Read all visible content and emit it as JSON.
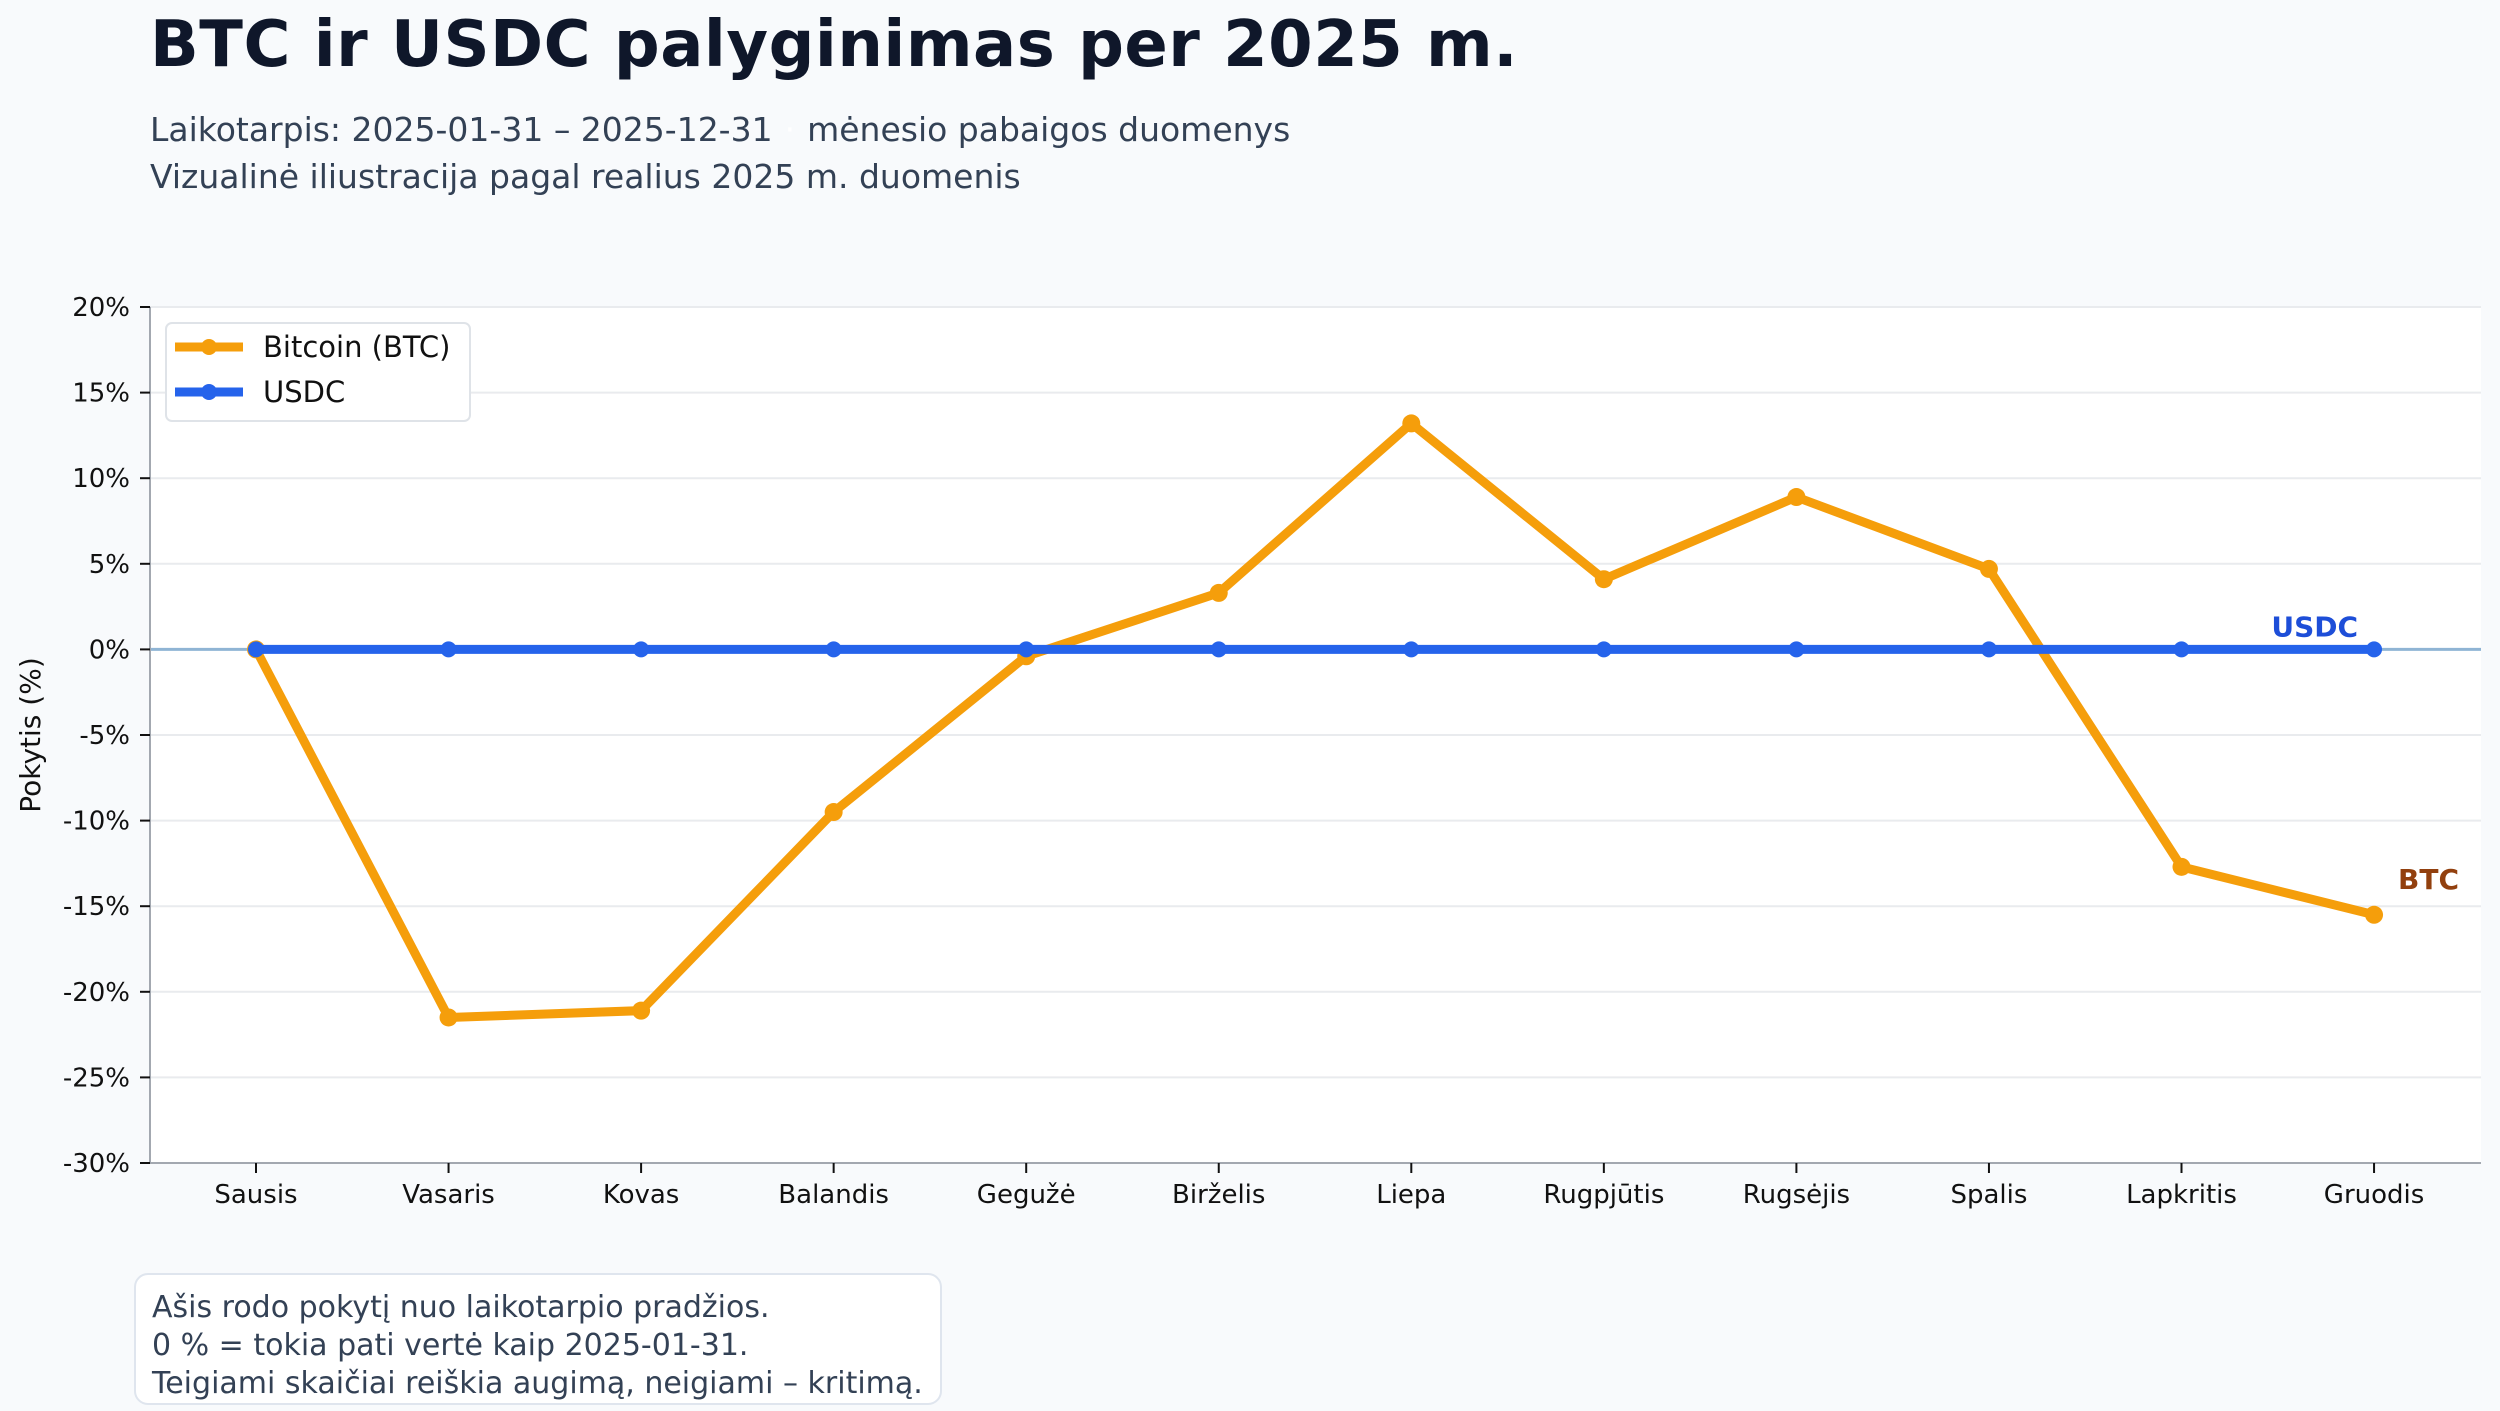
{
  "header": {
    "title": "BTC ir USDC palyginimas per 2025 m.",
    "subtitle_period": "Laikotarpis: 2025-01-31 – 2025-12-31",
    "subtitle_separator": "·",
    "subtitle_frequency": "mėnesio pabaigos duomenys",
    "subtitle_line2": "Vizualinė iliustracija pagal realius 2025 m. duomenis"
  },
  "note": {
    "lines": [
      "Ašis rodo pokytį nuo laikotarpio pradžios.",
      "0 % = tokia pati vertė kaip 2025-01-31.",
      "Teigiami skaičiai reiškia augimą, neigiami – kritimą."
    ]
  },
  "colors": {
    "btc": "#f59e0b",
    "usdc": "#2563eb",
    "btc_label": "#92400e",
    "usdc_label": "#1d4ed8",
    "zero_line": "#8fb4d4",
    "grid": "#e9ebee",
    "spine": "#a3a8b0",
    "background": "#f8fafc",
    "plot_background": "#ffffff"
  },
  "chart_data": {
    "type": "line",
    "title": "BTC ir USDC palyginimas per 2025 m.",
    "subtitle": "Laikotarpis: 2025-01-31 – 2025-12-31 · mėnesio pabaigos duomenys",
    "xlabel": "",
    "ylabel": "Pokytis (%)",
    "ylim": [
      -30,
      20
    ],
    "yticks": [
      20,
      15,
      10,
      5,
      0,
      -5,
      -10,
      -15,
      -20,
      -25,
      -30
    ],
    "ytick_labels": [
      "20%",
      "15%",
      "10%",
      "5%",
      "0%",
      "-5%",
      "-10%",
      "-15%",
      "-20%",
      "-25%",
      "-30%"
    ],
    "categories": [
      "Sausis",
      "Vasaris",
      "Kovas",
      "Balandis",
      "Gegužė",
      "Birželis",
      "Liepa",
      "Rugpjūtis",
      "Rugsėjis",
      "Spalis",
      "Lapkritis",
      "Gruodis"
    ],
    "series": [
      {
        "name": "Bitcoin (BTC)",
        "end_label": "BTC",
        "color": "#f59e0b",
        "values": [
          0,
          -21.5,
          -21.1,
          -9.5,
          -0.4,
          3.3,
          13.2,
          4.1,
          8.9,
          4.7,
          -12.7,
          -15.5
        ]
      },
      {
        "name": "USDC",
        "end_label": "USDC",
        "color": "#2563eb",
        "values": [
          0,
          0,
          0,
          0,
          0,
          0,
          0,
          0,
          0,
          0,
          0,
          0
        ]
      }
    ],
    "grid": true,
    "legend_position": "upper left",
    "reference_line": 0
  }
}
